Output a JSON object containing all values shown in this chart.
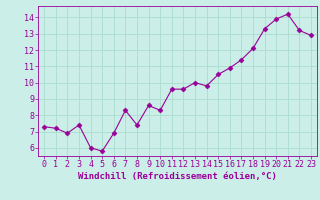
{
  "x": [
    0,
    1,
    2,
    3,
    4,
    5,
    6,
    7,
    8,
    9,
    10,
    11,
    12,
    13,
    14,
    15,
    16,
    17,
    18,
    19,
    20,
    21,
    22,
    23
  ],
  "y": [
    7.3,
    7.2,
    6.9,
    7.4,
    6.0,
    5.8,
    6.9,
    8.3,
    7.4,
    8.6,
    8.3,
    9.6,
    9.6,
    10.0,
    9.8,
    10.5,
    10.9,
    11.4,
    12.1,
    13.3,
    13.9,
    14.2,
    13.2,
    12.9
  ],
  "line_color": "#990099",
  "marker": "D",
  "marker_size": 2.5,
  "bg_color": "#cceee8",
  "grid_color": "#aaddcc",
  "xlabel": "Windchill (Refroidissement éolien,°C)",
  "xlabel_color": "#990099",
  "tick_color": "#990099",
  "ylim": [
    5.5,
    14.7
  ],
  "xlim": [
    -0.5,
    23.5
  ],
  "yticks": [
    6,
    7,
    8,
    9,
    10,
    11,
    12,
    13,
    14
  ],
  "xticks": [
    0,
    1,
    2,
    3,
    4,
    5,
    6,
    7,
    8,
    9,
    10,
    11,
    12,
    13,
    14,
    15,
    16,
    17,
    18,
    19,
    20,
    21,
    22,
    23
  ],
  "font_family": "monospace",
  "label_fontsize": 6.5,
  "tick_fontsize": 6.0,
  "linewidth": 0.8
}
